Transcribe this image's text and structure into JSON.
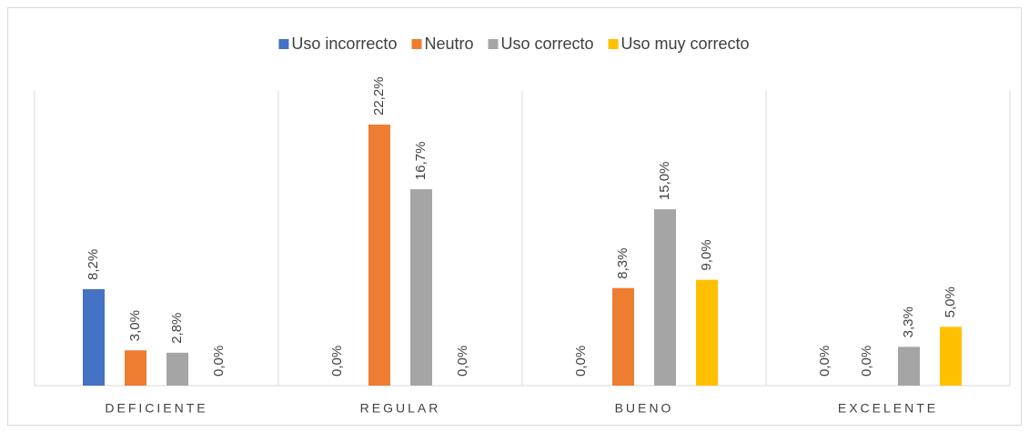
{
  "chart_data": {
    "type": "bar",
    "categories": [
      "DEFICIENTE",
      "REGULAR",
      "BUENO",
      "EXCELENTE"
    ],
    "series": [
      {
        "name": "Uso incorrecto",
        "color": "#4472c4",
        "values": [
          8.2,
          0.0,
          0.0,
          0.0
        ],
        "value_labels": [
          "8,2%",
          "0,0%",
          "0,0%",
          "0,0%"
        ]
      },
      {
        "name": "Neutro",
        "color": "#ed7d31",
        "values": [
          3.0,
          22.2,
          8.3,
          0.0
        ],
        "value_labels": [
          "3,0%",
          "22,2%",
          "8,3%",
          "0,0%"
        ]
      },
      {
        "name": "Uso correcto",
        "color": "#a5a5a5",
        "values": [
          2.8,
          16.7,
          15.0,
          3.3
        ],
        "value_labels": [
          "2,8%",
          "16,7%",
          "15,0%",
          "3,3%"
        ]
      },
      {
        "name": "Uso muy correcto",
        "color": "#ffc000",
        "values": [
          0.0,
          0.0,
          9.0,
          5.0
        ],
        "value_labels": [
          "0,0%",
          "0,0%",
          "9,0%",
          "5,0%"
        ]
      }
    ],
    "legend": "top"
  }
}
